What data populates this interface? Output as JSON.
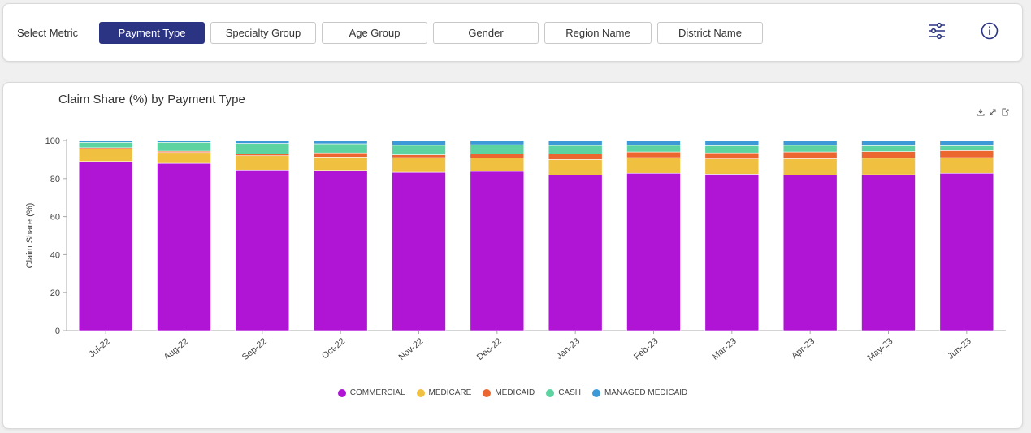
{
  "filters": {
    "label": "Select Metric",
    "tabs": [
      {
        "label": "Payment Type",
        "active": true
      },
      {
        "label": "Specialty Group",
        "active": false
      },
      {
        "label": "Age Group",
        "active": false
      },
      {
        "label": "Gender",
        "active": false
      },
      {
        "label": "Region Name",
        "active": false
      },
      {
        "label": "District Name",
        "active": false
      }
    ],
    "icons": [
      "sliders-icon",
      "info-icon"
    ]
  },
  "toolbar_icons": [
    "download-icon",
    "expand-icon",
    "export-icon"
  ],
  "colors": {
    "active_tab": "#2b3383",
    "COMMERCIAL": "#b015d6",
    "MEDICARE": "#f0c040",
    "MEDICAID": "#ec6630",
    "CASH": "#5cd3a0",
    "MANAGED MEDICAID": "#3d9ad6"
  },
  "chart_data": {
    "type": "bar",
    "stacked": true,
    "title": "Claim Share (%) by Payment Type",
    "xlabel": "",
    "ylabel": "Claim Share (%)",
    "ylim": [
      0,
      100
    ],
    "yticks": [
      0,
      20,
      40,
      60,
      80,
      100
    ],
    "grid": false,
    "legend_position": "bottom",
    "categories": [
      "Jul-22",
      "Aug-22",
      "Sep-22",
      "Oct-22",
      "Nov-22",
      "Dec-22",
      "Jan-23",
      "Feb-23",
      "Mar-23",
      "Apr-23",
      "May-23",
      "Jun-23"
    ],
    "series": [
      {
        "name": "COMMERCIAL",
        "values": [
          89.0,
          88.0,
          84.5,
          84.3,
          83.3,
          83.8,
          81.8,
          82.8,
          82.3,
          81.8,
          82.0,
          82.8
        ]
      },
      {
        "name": "MEDICARE",
        "values": [
          6.5,
          5.7,
          7.5,
          7.0,
          7.7,
          7.0,
          8.2,
          8.2,
          8.0,
          8.6,
          8.7,
          8.2
        ]
      },
      {
        "name": "MEDICAID",
        "values": [
          0.7,
          0.7,
          1.0,
          2.2,
          1.5,
          2.2,
          3.0,
          3.0,
          3.2,
          3.6,
          3.5,
          3.7
        ]
      },
      {
        "name": "CASH",
        "values": [
          2.8,
          4.6,
          5.5,
          4.8,
          5.0,
          4.8,
          4.4,
          3.5,
          3.8,
          3.5,
          3.1,
          2.6
        ]
      },
      {
        "name": "MANAGED MEDICAID",
        "values": [
          1.0,
          1.0,
          1.5,
          1.7,
          2.5,
          2.2,
          2.6,
          2.5,
          2.7,
          2.5,
          2.7,
          2.7
        ]
      }
    ]
  }
}
